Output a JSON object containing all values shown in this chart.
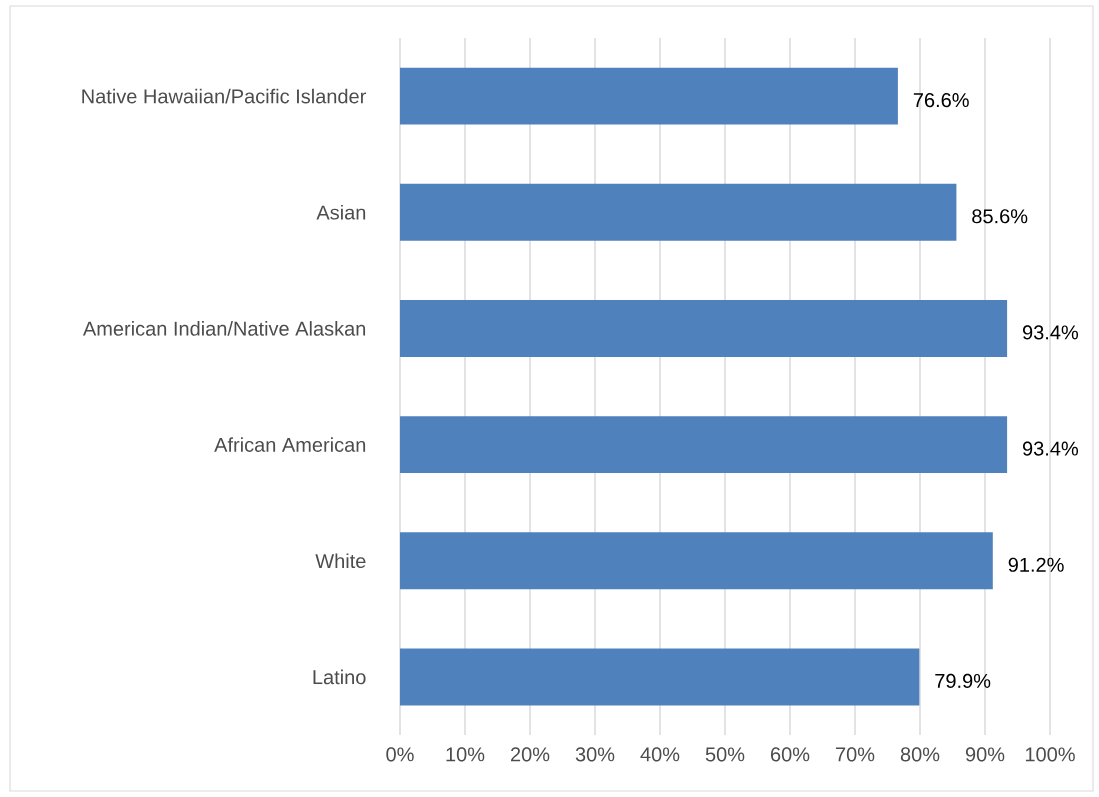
{
  "chart_data": {
    "type": "bar",
    "orientation": "horizontal",
    "categories": [
      "Native Hawaiian/Pacific Islander",
      "Asian",
      "American Indian/Native Alaskan",
      "African American",
      "White",
      "Latino"
    ],
    "values": [
      76.6,
      85.6,
      93.4,
      93.4,
      91.2,
      79.9
    ],
    "value_labels": [
      "76.6%",
      "85.6%",
      "93.4%",
      "93.4%",
      "91.2%",
      "79.9%"
    ],
    "color": "#4f81bd",
    "xlim": [
      0,
      100
    ],
    "xticks": [
      {
        "value": 0,
        "label": "0%"
      },
      {
        "value": 10,
        "label": "10%"
      },
      {
        "value": 20,
        "label": "20%"
      },
      {
        "value": 30,
        "label": "30%"
      },
      {
        "value": 40,
        "label": "40%"
      },
      {
        "value": 50,
        "label": "50%"
      },
      {
        "value": 60,
        "label": "60%"
      },
      {
        "value": 70,
        "label": "70%"
      },
      {
        "value": 80,
        "label": "80%"
      },
      {
        "value": 90,
        "label": "90%"
      },
      {
        "value": 100,
        "label": "100%"
      }
    ],
    "grid": "x"
  }
}
